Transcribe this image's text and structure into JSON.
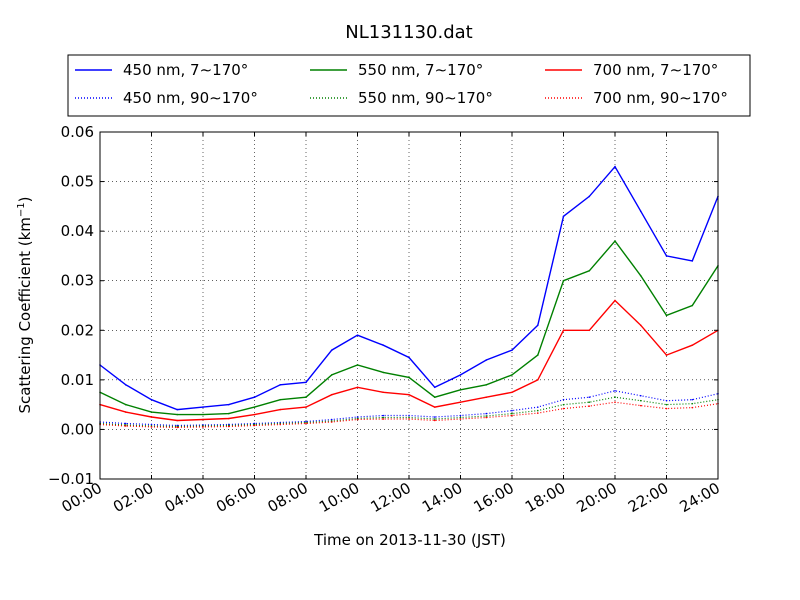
{
  "chart_data": {
    "type": "line",
    "title": "NL131130.dat",
    "xlabel": "Time on 2013-11-30 (JST)",
    "ylabel": "Scattering Coefficient (km",
    "ylabel_sup": "−1",
    "ylabel_tail": ")",
    "xlim": [
      "00:00",
      "24:00"
    ],
    "ylim": [
      -0.01,
      0.06
    ],
    "grid": true,
    "legend_position": "top",
    "x_ticks": [
      "00:00",
      "02:00",
      "04:00",
      "06:00",
      "08:00",
      "10:00",
      "12:00",
      "14:00",
      "16:00",
      "18:00",
      "20:00",
      "22:00",
      "24:00"
    ],
    "y_ticks": [
      "−0.01",
      "0.00",
      "0.01",
      "0.02",
      "0.03",
      "0.04",
      "0.05",
      "0.06"
    ],
    "x": [
      "00:00",
      "01:00",
      "02:00",
      "03:00",
      "04:00",
      "05:00",
      "06:00",
      "07:00",
      "08:00",
      "09:00",
      "10:00",
      "11:00",
      "12:00",
      "13:00",
      "14:00",
      "15:00",
      "16:00",
      "17:00",
      "18:00",
      "19:00",
      "20:00",
      "21:00",
      "22:00",
      "23:00",
      "24:00"
    ],
    "series": [
      {
        "name": "450 nm, 7∼170°",
        "color": "#0000ff",
        "style": "solid",
        "values": [
          0.013,
          0.009,
          0.006,
          0.004,
          0.0045,
          0.005,
          0.0065,
          0.009,
          0.0095,
          0.016,
          0.019,
          0.017,
          0.0145,
          0.0085,
          0.011,
          0.014,
          0.016,
          0.021,
          0.043,
          0.047,
          0.053,
          0.044,
          0.035,
          0.034,
          0.047
        ]
      },
      {
        "name": "550 nm, 7∼170°",
        "color": "#008000",
        "style": "solid",
        "values": [
          0.0075,
          0.005,
          0.0035,
          0.003,
          0.003,
          0.0032,
          0.0045,
          0.006,
          0.0065,
          0.011,
          0.013,
          0.0115,
          0.0105,
          0.0065,
          0.008,
          0.009,
          0.011,
          0.015,
          0.03,
          0.032,
          0.038,
          0.031,
          0.023,
          0.025,
          0.033
        ]
      },
      {
        "name": "700 nm, 7∼170°",
        "color": "#ff0000",
        "style": "solid",
        "values": [
          0.005,
          0.0035,
          0.0025,
          0.0018,
          0.002,
          0.0022,
          0.003,
          0.004,
          0.0045,
          0.007,
          0.0085,
          0.0075,
          0.007,
          0.0045,
          0.0055,
          0.0065,
          0.0075,
          0.01,
          0.02,
          0.02,
          0.026,
          0.021,
          0.015,
          0.017,
          0.02
        ]
      },
      {
        "name": "450 nm, 90∼170°",
        "color": "#0000ff",
        "style": "dotted",
        "values": [
          0.0015,
          0.0012,
          0.001,
          0.0008,
          0.0009,
          0.001,
          0.0012,
          0.0014,
          0.0016,
          0.002,
          0.0025,
          0.0028,
          0.0028,
          0.0025,
          0.0028,
          0.0032,
          0.0038,
          0.0045,
          0.006,
          0.0065,
          0.0078,
          0.0068,
          0.0058,
          0.006,
          0.0072
        ]
      },
      {
        "name": "550 nm, 90∼170°",
        "color": "#008000",
        "style": "dotted",
        "values": [
          0.0012,
          0.0009,
          0.0007,
          0.0006,
          0.0007,
          0.0008,
          0.001,
          0.0012,
          0.0014,
          0.0017,
          0.0022,
          0.0024,
          0.0024,
          0.0021,
          0.0024,
          0.0027,
          0.0032,
          0.0038,
          0.005,
          0.0055,
          0.0065,
          0.0058,
          0.005,
          0.0052,
          0.006
        ]
      },
      {
        "name": "700 nm, 90∼170°",
        "color": "#ff0000",
        "style": "dotted",
        "values": [
          0.001,
          0.0007,
          0.0005,
          0.0004,
          0.0005,
          0.0006,
          0.0008,
          0.001,
          0.0012,
          0.0015,
          0.002,
          0.0021,
          0.0021,
          0.0018,
          0.0021,
          0.0024,
          0.0028,
          0.0033,
          0.0042,
          0.0047,
          0.0055,
          0.0048,
          0.0042,
          0.0044,
          0.0052
        ]
      }
    ],
    "legend_order": [
      0,
      1,
      2,
      3,
      4,
      5
    ]
  }
}
